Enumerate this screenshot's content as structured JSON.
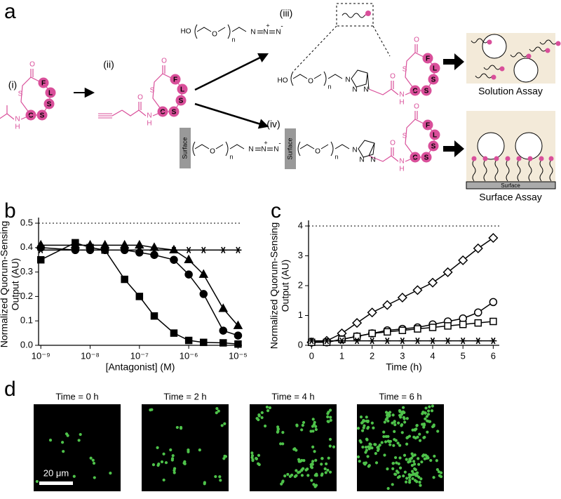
{
  "panels": [
    "a",
    "b",
    "c",
    "d"
  ],
  "diagram": {
    "steps": [
      "(i)",
      "(ii)",
      "(iii)",
      "(iv)"
    ],
    "residues": [
      "F",
      "L",
      "S",
      "C",
      "S"
    ],
    "atoms": {
      "hydroxyl": "HO",
      "oxygen": "O",
      "nitrogen": "N",
      "hydrogen": "H",
      "sulfur": "S",
      "repeat": "n",
      "plus": "+",
      "minus": "-"
    },
    "surface": "Surface",
    "assays": [
      "Solution Assay",
      "Surface Assay"
    ]
  },
  "chart_data": [
    {
      "type": "line",
      "log_x": true,
      "xlabel": "[Antagonist] (M)",
      "ylabel": [
        "Normalized Quorum-Sensing",
        "Output (AU)"
      ],
      "x": [
        1e-09,
        5e-09,
        1e-08,
        2e-08,
        5e-08,
        1e-07,
        2e-07,
        5e-07,
        1e-06,
        2e-06,
        5e-06,
        1e-05
      ],
      "xlim": [
        9e-10,
        1.2e-05
      ],
      "xticks": [
        {
          "value": 1e-09,
          "label": "10⁻⁹"
        },
        {
          "value": 1e-08,
          "label": "10⁻⁸"
        },
        {
          "value": 1e-07,
          "label": "10⁻⁷"
        },
        {
          "value": 1e-06,
          "label": "10⁻⁶"
        },
        {
          "value": 1e-05,
          "label": "10⁻⁵"
        }
      ],
      "ylim": [
        0,
        0.5
      ],
      "yticks": [
        {
          "value": 0,
          "label": "0.0"
        },
        0.1,
        0.2,
        0.3,
        0.4,
        0.5
      ],
      "reference_line": 0.5,
      "series": [
        {
          "marker": "square",
          "filled": true,
          "color": "#000000",
          "values": [
            0.35,
            0.42,
            0.4,
            0.39,
            0.27,
            0.2,
            0.12,
            0.05,
            0.02,
            0.012,
            0.01,
            0.005
          ]
        },
        {
          "marker": "circle",
          "filled": true,
          "color": "#000000",
          "values": [
            0.4,
            0.39,
            0.39,
            0.39,
            0.39,
            0.38,
            0.37,
            0.35,
            0.29,
            0.21,
            0.06,
            0.04
          ]
        },
        {
          "marker": "triangle",
          "filled": true,
          "color": "#000000",
          "values": [
            0.41,
            0.41,
            0.41,
            0.41,
            0.41,
            0.41,
            0.4,
            0.39,
            0.35,
            0.29,
            0.15,
            0.08
          ]
        },
        {
          "marker": "star",
          "filled": true,
          "color": "#000000",
          "values": [
            0.39,
            0.39,
            0.39,
            0.39,
            0.39,
            0.39,
            0.39,
            0.39,
            0.39,
            0.39,
            0.39,
            0.39
          ]
        }
      ]
    },
    {
      "type": "line",
      "log_x": false,
      "xlabel": "Time (h)",
      "ylabel": [
        "Normalized Quorum-Sensing",
        "Output (AU)"
      ],
      "x": [
        0,
        0.5,
        1,
        1.5,
        2,
        2.5,
        3,
        3.5,
        4,
        4.5,
        5,
        5.5,
        6
      ],
      "xlim": [
        -0.1,
        6.2
      ],
      "xticks": [
        0,
        1,
        2,
        3,
        4,
        5,
        6
      ],
      "ylim": [
        0,
        4
      ],
      "yticks": [
        0,
        1,
        2,
        3,
        4
      ],
      "reference_line": 4,
      "series": [
        {
          "marker": "diamond",
          "filled": false,
          "color": "#000000",
          "values": [
            0.1,
            0.15,
            0.4,
            0.75,
            1.1,
            1.35,
            1.6,
            1.85,
            2.1,
            2.45,
            2.85,
            3.25,
            3.6
          ]
        },
        {
          "marker": "circle",
          "filled": false,
          "color": "#000000",
          "values": [
            0.1,
            0.1,
            0.2,
            0.3,
            0.4,
            0.5,
            0.55,
            0.6,
            0.7,
            0.8,
            0.9,
            1.1,
            1.45
          ]
        },
        {
          "marker": "square",
          "filled": false,
          "color": "#000000",
          "values": [
            0.1,
            0.1,
            0.2,
            0.3,
            0.4,
            0.45,
            0.5,
            0.55,
            0.6,
            0.65,
            0.7,
            0.75,
            0.8
          ]
        },
        {
          "marker": "star",
          "filled": true,
          "color": "#000000",
          "values": [
            0.15,
            0.15,
            0.15,
            0.15,
            0.15,
            0.15,
            0.15,
            0.15,
            0.15,
            0.15,
            0.15,
            0.15,
            0.15
          ]
        }
      ]
    }
  ],
  "micrographs": {
    "titles": [
      "Time = 0 h",
      "Time = 2 h",
      "Time = 4 h",
      "Time = 6 h"
    ],
    "scale_bar": "20 μm"
  }
}
